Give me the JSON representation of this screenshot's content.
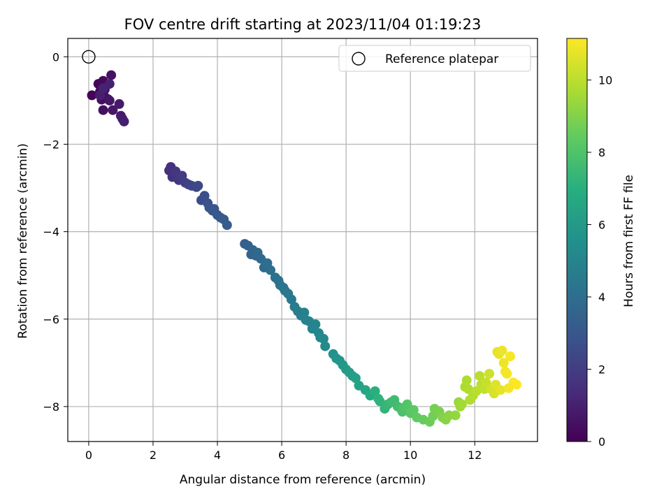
{
  "chart_data": {
    "type": "scatter",
    "title": "FOV centre drift starting at 2023/11/04 01:19:23",
    "xlabel": "Angular distance from reference (arcmin)",
    "ylabel": "Rotation from reference (arcmin)",
    "xlim": [
      -0.65,
      13.95
    ],
    "ylim": [
      -8.8,
      0.42
    ],
    "xticks": [
      0,
      2,
      4,
      6,
      8,
      10,
      12
    ],
    "yticks": [
      0,
      -2,
      -4,
      -6,
      -8
    ],
    "grid": true,
    "legend": {
      "position": "top-right",
      "entries": [
        "Reference platepar"
      ]
    },
    "reference_point": {
      "x": 0,
      "y": 0,
      "marker": "open-circle"
    },
    "colorbar": {
      "label": "Hours from first FF file",
      "colormap": "viridis",
      "range": [
        0,
        11.15
      ],
      "ticks": [
        0,
        2,
        4,
        6,
        8,
        10
      ]
    },
    "series": [
      {
        "x": [
          0.1,
          0.3,
          0.35,
          0.45,
          0.5,
          0.55,
          0.4,
          0.45,
          0.6,
          0.7,
          0.5,
          0.65,
          0.75,
          0.95,
          1.0,
          1.05,
          1.1,
          0.35,
          0.65,
          0.45,
          2.5,
          2.55,
          2.6,
          2.7,
          2.8,
          2.9,
          3.0,
          3.1,
          3.2,
          3.35,
          3.4,
          3.5,
          3.6,
          3.7,
          3.75,
          3.85,
          3.9,
          4.0,
          4.1,
          4.2,
          4.3,
          4.85,
          4.95,
          5.05,
          5.1,
          5.2,
          5.25,
          5.35,
          5.45,
          5.55,
          5.65,
          5.8,
          5.9,
          5.95,
          6.05,
          6.1,
          6.2,
          6.3,
          6.4,
          6.5,
          6.6,
          6.7,
          6.75,
          6.85,
          6.95,
          7.05,
          7.15,
          7.2,
          7.3,
          7.35,
          7.6,
          7.7,
          7.8,
          7.9,
          8.0,
          8.1,
          8.2,
          8.3,
          8.4,
          8.6,
          8.75,
          8.9,
          9.0,
          9.05,
          9.2,
          9.3,
          9.4,
          9.5,
          9.6,
          9.7,
          9.75,
          9.8,
          9.9,
          10.0,
          10.1,
          10.2,
          10.4,
          10.6,
          10.7,
          10.75,
          10.9,
          11.0,
          11.1,
          11.2,
          11.4,
          11.5,
          11.55,
          11.6,
          11.7,
          11.75,
          11.8,
          11.85,
          11.95,
          12.05,
          12.15,
          12.2,
          12.3,
          12.35,
          12.45,
          12.5,
          12.6,
          12.65,
          12.7,
          12.75,
          12.85,
          12.9,
          12.95,
          13.0,
          13.1,
          13.2,
          13.3,
          12.8,
          13.05
        ],
        "y": [
          -0.88,
          -0.62,
          -0.8,
          -0.55,
          -0.92,
          -0.95,
          -0.98,
          -1.22,
          -0.97,
          -0.42,
          -0.75,
          -1.0,
          -1.22,
          -1.08,
          -1.35,
          -1.42,
          -1.48,
          -0.88,
          -0.62,
          -0.72,
          -2.6,
          -2.52,
          -2.75,
          -2.62,
          -2.82,
          -2.72,
          -2.88,
          -2.92,
          -2.95,
          -2.98,
          -2.95,
          -3.28,
          -3.18,
          -3.35,
          -3.45,
          -3.52,
          -3.48,
          -3.62,
          -3.68,
          -3.72,
          -3.85,
          -4.28,
          -4.32,
          -4.52,
          -4.42,
          -4.55,
          -4.48,
          -4.62,
          -4.82,
          -4.72,
          -4.88,
          -5.05,
          -5.12,
          -5.22,
          -5.28,
          -5.35,
          -5.42,
          -5.55,
          -5.72,
          -5.82,
          -5.92,
          -5.85,
          -6.02,
          -6.05,
          -6.22,
          -6.12,
          -6.32,
          -6.42,
          -6.45,
          -6.62,
          -6.8,
          -6.9,
          -6.95,
          -7.05,
          -7.15,
          -7.22,
          -7.3,
          -7.35,
          -7.52,
          -7.62,
          -7.75,
          -7.65,
          -7.82,
          -7.88,
          -8.05,
          -7.95,
          -7.9,
          -7.85,
          -8.0,
          -8.05,
          -8.12,
          -8.02,
          -7.95,
          -8.15,
          -8.08,
          -8.25,
          -8.3,
          -8.35,
          -8.22,
          -8.05,
          -8.12,
          -8.25,
          -8.3,
          -8.2,
          -8.2,
          -7.9,
          -8.0,
          -7.95,
          -7.55,
          -7.4,
          -7.6,
          -7.85,
          -7.75,
          -7.65,
          -7.3,
          -7.5,
          -7.6,
          -7.45,
          -7.25,
          -7.6,
          -7.7,
          -7.5,
          -6.75,
          -6.8,
          -6.72,
          -7.0,
          -7.2,
          -7.25,
          -6.85,
          -7.45,
          -7.5,
          -7.62,
          -7.58
        ],
        "hours": [
          0.1,
          0.15,
          0.2,
          0.25,
          0.3,
          0.35,
          0.4,
          0.45,
          0.5,
          0.55,
          0.6,
          0.65,
          0.7,
          0.8,
          0.85,
          0.9,
          0.95,
          1.0,
          1.05,
          1.1,
          1.5,
          1.6,
          1.7,
          1.8,
          1.9,
          2.0,
          2.1,
          2.2,
          2.3,
          2.4,
          2.5,
          2.6,
          2.7,
          2.8,
          2.9,
          3.0,
          3.05,
          3.1,
          3.15,
          3.2,
          3.25,
          3.4,
          3.5,
          3.6,
          3.65,
          3.7,
          3.75,
          3.8,
          3.9,
          4.0,
          4.05,
          4.1,
          4.2,
          4.25,
          4.3,
          4.35,
          4.4,
          4.5,
          4.6,
          4.7,
          4.8,
          4.85,
          4.9,
          4.95,
          5.0,
          5.05,
          5.1,
          5.15,
          5.2,
          5.3,
          5.6,
          5.7,
          5.8,
          5.9,
          6.0,
          6.1,
          6.2,
          6.3,
          6.4,
          6.6,
          6.8,
          7.0,
          7.1,
          7.2,
          7.3,
          7.4,
          7.5,
          7.6,
          7.7,
          7.8,
          7.9,
          8.0,
          8.1,
          8.2,
          8.3,
          8.4,
          8.5,
          8.6,
          8.7,
          8.8,
          8.9,
          9.0,
          9.1,
          9.2,
          9.3,
          9.4,
          9.5,
          9.6,
          9.7,
          9.75,
          9.8,
          9.85,
          9.9,
          9.95,
          10.0,
          10.05,
          10.1,
          10.2,
          10.3,
          10.4,
          10.5,
          10.6,
          10.7,
          10.8,
          10.85,
          10.9,
          10.95,
          11.0,
          11.05,
          11.1,
          11.15,
          10.75,
          11.0
        ]
      }
    ]
  }
}
